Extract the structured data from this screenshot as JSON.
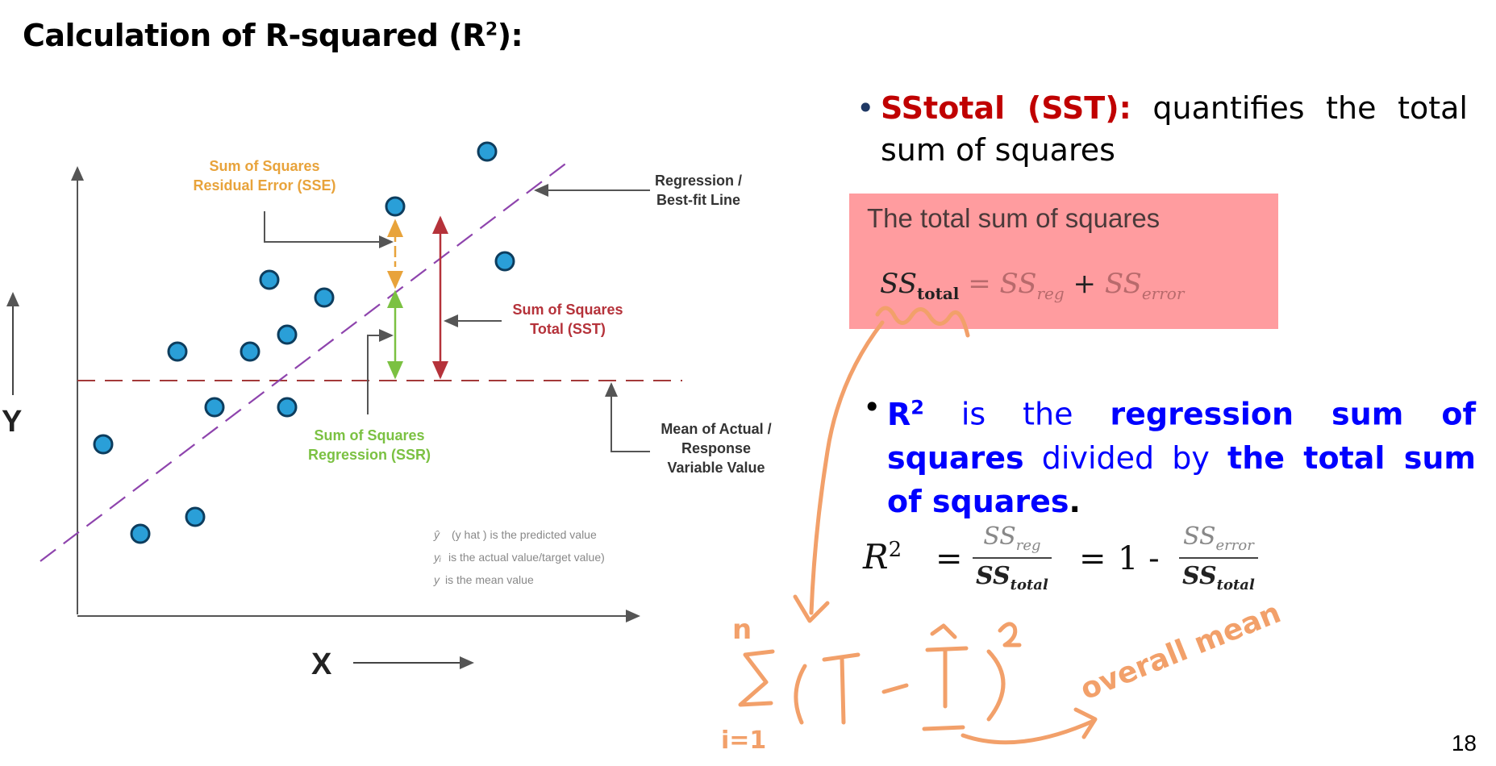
{
  "slide": {
    "title": "Calculation of R-squared (R",
    "title_sup": "2",
    "title_end": "):",
    "page_number": "18"
  },
  "diagram": {
    "axis_x": "X",
    "axis_y": "Y",
    "label_sse_1": "Sum of Squares",
    "label_sse_2": "Residual Error (SSE)",
    "label_reg_1": "Regression /",
    "label_reg_2": "Best-fit Line",
    "label_sst_1": "Sum of Squares",
    "label_sst_2": "Total (SST)",
    "label_ssr_1": "Sum of Squares",
    "label_ssr_2": "Regression (SSR)",
    "label_mean_1": "Mean of Actual /",
    "label_mean_2": "Response",
    "label_mean_3": "Variable Value",
    "legend_1_sym": "ŷ",
    "legend_1_text": "(y hat ) is the predicted value",
    "legend_2_sym": "yᵢ",
    "legend_2_text": "is the actual value/target value)",
    "legend_3_sym": "y",
    "legend_3_text": "is the mean value",
    "colors": {
      "point_fill": "#2a9fd8",
      "regression_line": "#8e44ad",
      "mean_line": "#a33a3a",
      "sse": "#e8a33b",
      "sst": "#b5323a",
      "ssr": "#7bc142"
    }
  },
  "bullet1": {
    "term": "SStotal (SST):",
    "text": "quantifies the total sum of squares"
  },
  "formula_box": {
    "title": "The total sum of squares",
    "ss": "SS",
    "total_sub": "total",
    "eq": "=",
    "reg_ss": "SS",
    "reg_sub": "reg",
    "plus": "+",
    "err_ss": "SS",
    "err_sub": "error"
  },
  "bullet2": {
    "r": "R",
    "sup": "2",
    "text1": "is the",
    "bold1": "regression sum of squares",
    "text2": "divided by",
    "bold2": "the total sum of squares",
    "period": "."
  },
  "r2_formula": {
    "lhs": "R",
    "lhs_sup": "2",
    "eq1": "=",
    "num1": "SS",
    "num1_sub": "reg",
    "den1": "SS",
    "den1_sub": "total",
    "eq2": "=",
    "one_minus": "1 -",
    "num2": "SS",
    "num2_sub": "error",
    "den2": "SS",
    "den2_sub": "total"
  },
  "annotation": {
    "sum_upper": "n",
    "sum_lower": "i=1",
    "note": "overall mean",
    "color": "#f2a06a"
  }
}
